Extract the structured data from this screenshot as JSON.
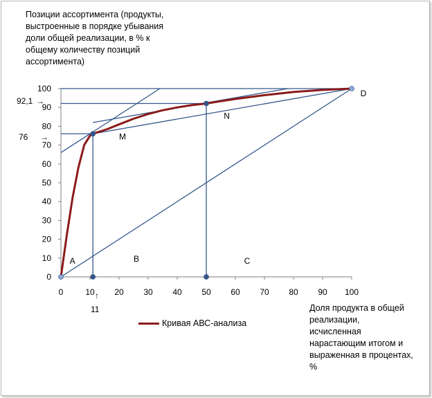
{
  "chart_data": {
    "type": "line",
    "title": "",
    "ylabel": "Позиции ассортимента (продукты, выстроенные в порядке убывания доли общей реализации, в % к общему количеству позиций ассортимента)",
    "xlabel": "Доля продукта в общей реализации, исчисленная нарастающим итогом и выраженная в процентах, %",
    "xlim": [
      0,
      100
    ],
    "ylim": [
      0,
      100
    ],
    "x_ticks": [
      "0",
      "10",
      "20",
      "30",
      "40",
      "50",
      "60",
      "70",
      "80",
      "90",
      "100"
    ],
    "y_ticks": [
      "0",
      "10",
      "20",
      "30",
      "40",
      "50",
      "60",
      "70",
      "80",
      "90",
      "100"
    ],
    "grid": false,
    "legend_position": "bottom",
    "series": [
      {
        "name": "Кривая АВС-анализа",
        "color": "#8b1a1a",
        "x": [
          0,
          2,
          4,
          6,
          8,
          10,
          11,
          13,
          16,
          20,
          25,
          30,
          35,
          40,
          45,
          50,
          55,
          60,
          70,
          80,
          90,
          100
        ],
        "y": [
          0,
          22,
          42,
          58,
          70,
          75,
          76,
          77,
          78.5,
          81,
          84,
          86.5,
          88.5,
          90,
          91.2,
          92.1,
          93.3,
          94.5,
          96.5,
          98.2,
          99.3,
          100
        ]
      }
    ],
    "reference_lines": [
      {
        "kind": "diagonal",
        "from": [
          0,
          0
        ],
        "to": [
          100,
          100
        ],
        "color": "#34568b"
      },
      {
        "kind": "chord",
        "from": [
          11,
          76
        ],
        "to": [
          100,
          100
        ],
        "color": "#34568b"
      },
      {
        "kind": "tangent",
        "from": [
          0,
          66
        ],
        "to": [
          34,
          100
        ],
        "color": "#34568b"
      },
      {
        "kind": "tangent",
        "from": [
          11,
          82
        ],
        "to": [
          78,
          100
        ],
        "color": "#34568b"
      },
      {
        "kind": "hline",
        "from": [
          0,
          76
        ],
        "to": [
          11,
          76
        ],
        "color": "#34568b"
      },
      {
        "kind": "hline",
        "from": [
          0,
          92.1
        ],
        "to": [
          50,
          92.1
        ],
        "color": "#34568b"
      },
      {
        "kind": "hline",
        "from": [
          0,
          100
        ],
        "to": [
          100,
          100
        ],
        "color": "#34568b"
      },
      {
        "kind": "vline",
        "from": [
          11,
          0
        ],
        "to": [
          11,
          76
        ],
        "color": "#34568b"
      },
      {
        "kind": "vline",
        "from": [
          50,
          0
        ],
        "to": [
          50,
          92.1
        ],
        "color": "#34568b"
      }
    ],
    "markers": [
      {
        "x": 0,
        "y": 0,
        "color": "#8fa8d8"
      },
      {
        "x": 11,
        "y": 76,
        "color": "#34568b"
      },
      {
        "x": 50,
        "y": 92.1,
        "color": "#34568b"
      },
      {
        "x": 100,
        "y": 100,
        "color": "#8fa8d8"
      },
      {
        "x": 11,
        "y": 0,
        "color": "#34568b"
      },
      {
        "x": 50,
        "y": 0,
        "color": "#34568b"
      }
    ],
    "annotations": [
      {
        "text": "A",
        "x": 3,
        "y": 7
      },
      {
        "text": "B",
        "x": 25,
        "y": 8
      },
      {
        "text": "C",
        "x": 63,
        "y": 7
      },
      {
        "text": "M",
        "x": 20,
        "y": 73
      },
      {
        "text": "N",
        "x": 56,
        "y": 84
      },
      {
        "text": "D",
        "x": 103,
        "y": 96
      }
    ],
    "callouts": {
      "y_76": "76",
      "y_92": "92,1",
      "x_11": "11",
      "arrow_right": "→",
      "arrow_up": "↑"
    }
  }
}
